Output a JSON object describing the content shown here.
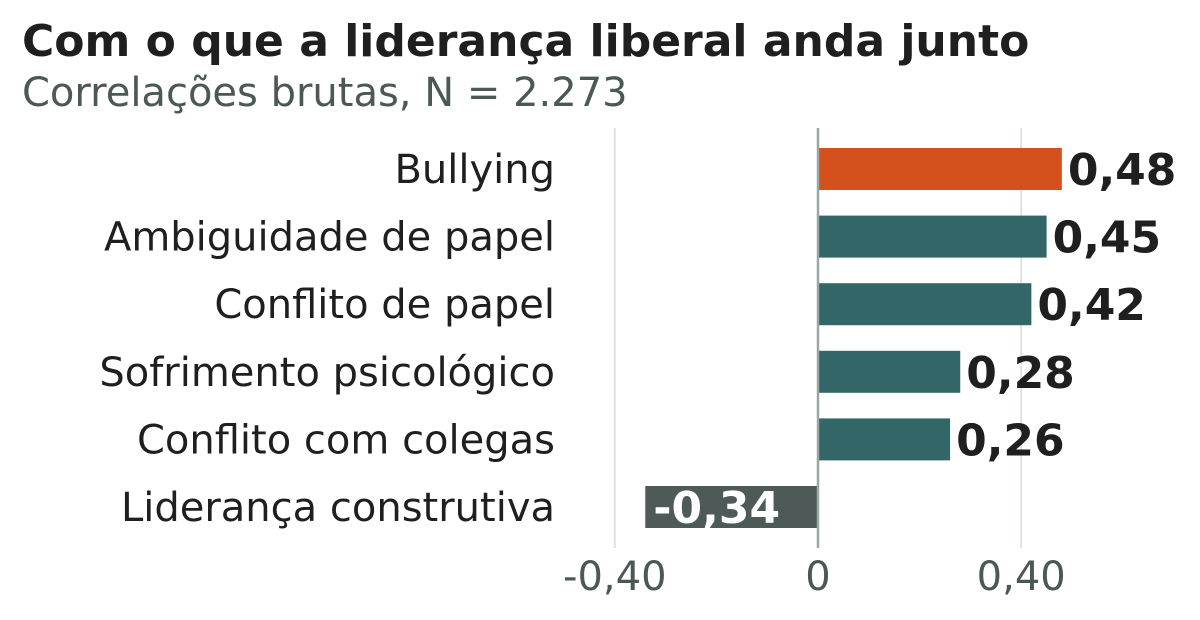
{
  "chart_data": {
    "type": "bar",
    "orientation": "horizontal",
    "title": "Com o que a liderança liberal anda junto",
    "subtitle": "Correlações brutas, N = 2.273",
    "categories": [
      "Bullying",
      "Ambiguidade de papel",
      "Conflito de papel",
      "Sofrimento psicológico",
      "Conflito com colegas",
      "Liderança construtiva"
    ],
    "values": [
      0.48,
      0.45,
      0.42,
      0.28,
      0.26,
      -0.34
    ],
    "value_labels": [
      "0,48",
      "0,45",
      "0,42",
      "0,28",
      "0,26",
      "-0,34"
    ],
    "colors": [
      "#d4501c",
      "#336666",
      "#336666",
      "#336666",
      "#336666",
      "#4d5a58"
    ],
    "xlim": [
      -0.46,
      0.63
    ],
    "xticks": [
      -0.4,
      0,
      0.4
    ],
    "xtick_labels": [
      "-0,40",
      "0",
      "0,40"
    ],
    "grid": "vertical",
    "legend": "none"
  }
}
